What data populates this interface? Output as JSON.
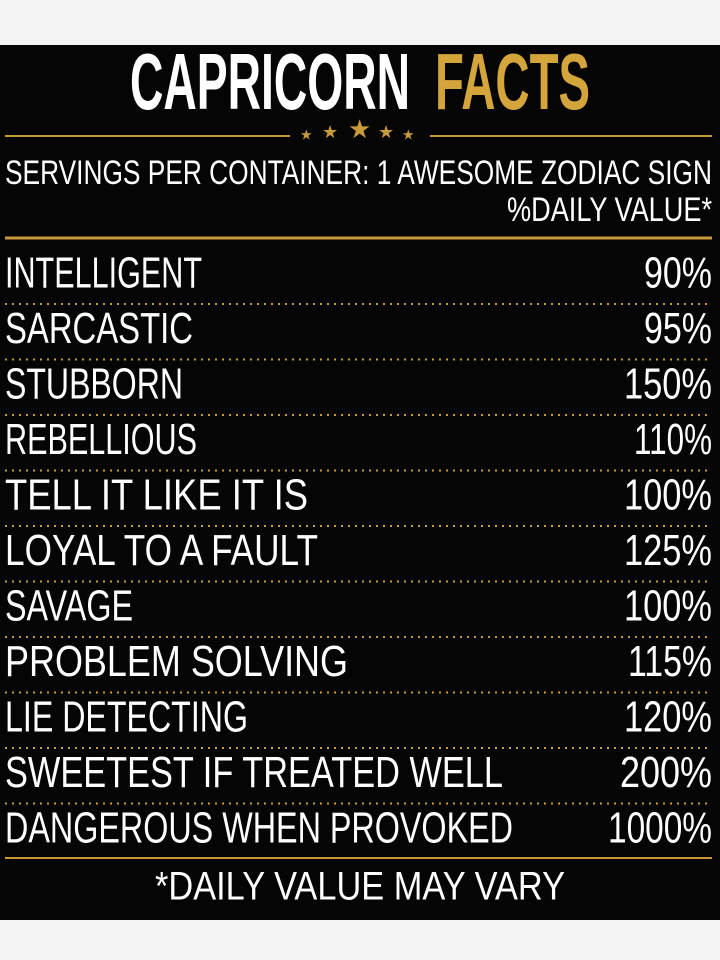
{
  "header": {
    "title_white": "CAPRICORN",
    "title_gold": "FACTS",
    "servings": "SERVINGS PER CONTAINER: 1 AWESOME ZODIAC SIGN",
    "daily_value": "%DAILY VALUE*"
  },
  "rows": [
    [
      "INTELLIGENT",
      "90%"
    ],
    [
      "SARCASTIC",
      "95%"
    ],
    [
      "STUBBORN",
      "150%"
    ],
    [
      "REBELLIOUS",
      "110%"
    ],
    [
      "TELL IT LIKE IT IS",
      "100%"
    ],
    [
      "LOYAL TO A FAULT",
      "125%"
    ],
    [
      "SAVAGE",
      "100%"
    ],
    [
      "PROBLEM   SOLVING",
      "115%"
    ],
    [
      "LIE DETECTING",
      "120%"
    ],
    [
      "SWEETEST IF TREATED WELL",
      "200%"
    ],
    [
      "DANGEROUS WHEN PROVOKED",
      "1000%"
    ]
  ],
  "footer": "*DAILY VALUE MAY VARY"
}
